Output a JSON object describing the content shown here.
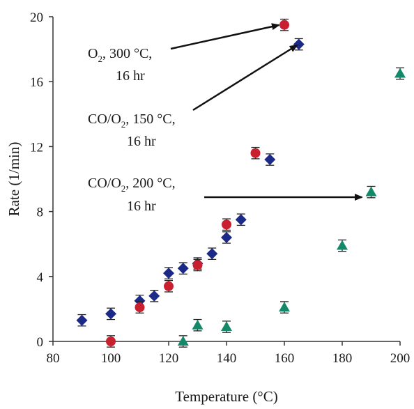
{
  "chart_data": {
    "type": "scatter",
    "title": "",
    "xlabel": "Temperature (°C)",
    "ylabel": "Rate (1/min)",
    "xlim": [
      80,
      200
    ],
    "ylim": [
      0,
      20
    ],
    "xticks": [
      80,
      100,
      120,
      140,
      160,
      180,
      200
    ],
    "yticks": [
      0,
      4,
      8,
      12,
      16,
      20
    ],
    "grid": false,
    "legend": "none",
    "series": [
      {
        "marker": "diamond",
        "color": "#1c2a87",
        "points": [
          {
            "x": 90,
            "y": 1.3
          },
          {
            "x": 100,
            "y": 1.7
          },
          {
            "x": 110,
            "y": 2.5
          },
          {
            "x": 115,
            "y": 2.8
          },
          {
            "x": 120,
            "y": 4.2
          },
          {
            "x": 125,
            "y": 4.5
          },
          {
            "x": 130,
            "y": 4.8
          },
          {
            "x": 135,
            "y": 5.4
          },
          {
            "x": 140,
            "y": 6.4
          },
          {
            "x": 145,
            "y": 7.5
          },
          {
            "x": 155,
            "y": 11.2
          },
          {
            "x": 165,
            "y": 18.3
          }
        ]
      },
      {
        "marker": "circle",
        "color": "#c8202f",
        "points": [
          {
            "x": 100,
            "y": 0.0
          },
          {
            "x": 110,
            "y": 2.1
          },
          {
            "x": 120,
            "y": 3.4
          },
          {
            "x": 130,
            "y": 4.7
          },
          {
            "x": 140,
            "y": 7.2
          },
          {
            "x": 150,
            "y": 11.6
          },
          {
            "x": 160,
            "y": 19.5
          }
        ]
      },
      {
        "marker": "triangle",
        "color": "#14896a",
        "points": [
          {
            "x": 125,
            "y": 0.0
          },
          {
            "x": 130,
            "y": 1.0
          },
          {
            "x": 140,
            "y": 0.9
          },
          {
            "x": 160,
            "y": 2.1
          },
          {
            "x": 180,
            "y": 5.9
          },
          {
            "x": 190,
            "y": 9.2
          },
          {
            "x": 200,
            "y": 16.5
          }
        ]
      }
    ],
    "annotations": [
      {
        "line1_main": "O",
        "line1_sub": "2",
        "line1_rest": ", 300 °C,",
        "line2": "16 hr",
        "target": {
          "x": 160,
          "y": 19.5
        }
      },
      {
        "line1_main": "CO/O",
        "line1_sub": "2",
        "line1_rest": ", 150 °C,",
        "line2": "16 hr",
        "target": {
          "x": 165,
          "y": 18.3
        }
      },
      {
        "line1_main": "CO/O",
        "line1_sub": "2",
        "line1_rest": ", 200 °C,",
        "line2": "16 hr",
        "target": {
          "x": 190,
          "y": 9.2
        }
      }
    ]
  }
}
